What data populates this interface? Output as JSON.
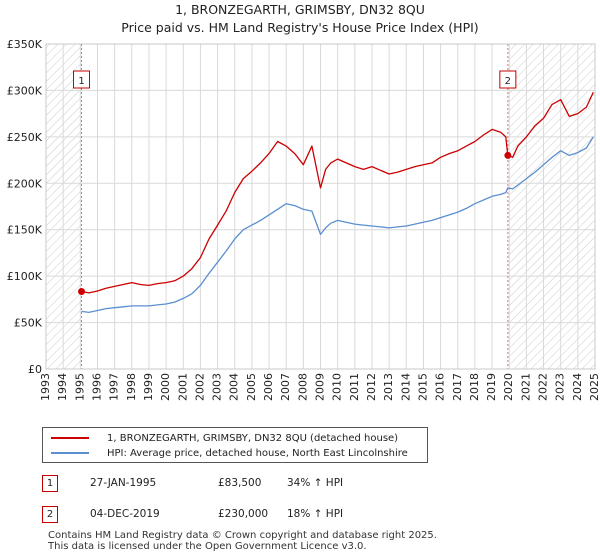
{
  "chart_data": {
    "type": "line",
    "title": "1, BRONZEGARTH, GRIMSBY, DN32 8QU",
    "subtitle": "Price paid vs. HM Land Registry's House Price Index (HPI)",
    "xlabel": "",
    "ylabel": "",
    "xlim": [
      1993,
      2025
    ],
    "ylim": [
      0,
      350000
    ],
    "x_ticks": [
      "1993",
      "1994",
      "1995",
      "1996",
      "1997",
      "1998",
      "1999",
      "2000",
      "2001",
      "2002",
      "2003",
      "2004",
      "2005",
      "2006",
      "2007",
      "2008",
      "2009",
      "2010",
      "2011",
      "2012",
      "2013",
      "2014",
      "2015",
      "2016",
      "2017",
      "2018",
      "2019",
      "2020",
      "2021",
      "2022",
      "2023",
      "2024",
      "2025"
    ],
    "y_ticks": [
      {
        "value": 0,
        "label": "£0"
      },
      {
        "value": 50000,
        "label": "£50K"
      },
      {
        "value": 100000,
        "label": "£100K"
      },
      {
        "value": 150000,
        "label": "£150K"
      },
      {
        "value": 200000,
        "label": "£200K"
      },
      {
        "value": 250000,
        "label": "£250K"
      },
      {
        "value": 300000,
        "label": "£300K"
      },
      {
        "value": 350000,
        "label": "£350K"
      }
    ],
    "grid": true,
    "series": [
      {
        "name": "1, BRONZEGARTH, GRIMSBY, DN32 8QU (detached house)",
        "color": "#cc0000",
        "x": [
          1995.07,
          1995.5,
          1996,
          1996.5,
          1997,
          1997.5,
          1998,
          1998.5,
          1999,
          1999.5,
          2000,
          2000.5,
          2001,
          2001.5,
          2002,
          2002.5,
          2003,
          2003.5,
          2004,
          2004.5,
          2005,
          2005.5,
          2006,
          2006.5,
          2007,
          2007.5,
          2008,
          2008.5,
          2009,
          2009.3,
          2009.6,
          2010,
          2010.5,
          2011,
          2011.5,
          2012,
          2012.5,
          2013,
          2013.5,
          2014,
          2014.5,
          2015,
          2015.5,
          2016,
          2016.5,
          2017,
          2017.5,
          2018,
          2018.5,
          2019,
          2019.5,
          2019.8,
          2019.92,
          2020.2,
          2020.5,
          2021,
          2021.5,
          2022,
          2022.5,
          2023,
          2023.5,
          2024,
          2024.5,
          2024.9
        ],
        "y": [
          83500,
          82000,
          84000,
          87000,
          89000,
          91000,
          93000,
          91000,
          90000,
          92000,
          93000,
          95000,
          100000,
          108000,
          120000,
          140000,
          155000,
          170000,
          190000,
          205000,
          213000,
          222000,
          232000,
          245000,
          240000,
          232000,
          220000,
          240000,
          195000,
          215000,
          222000,
          226000,
          222000,
          218000,
          215000,
          218000,
          214000,
          210000,
          212000,
          215000,
          218000,
          220000,
          222000,
          228000,
          232000,
          235000,
          240000,
          245000,
          252000,
          258000,
          255000,
          250000,
          230000,
          228000,
          240000,
          250000,
          262000,
          270000,
          285000,
          290000,
          272000,
          275000,
          282000,
          298000
        ]
      },
      {
        "name": "HPI: Average price, detached house, North East Lincolnshire",
        "color": "#5b8fd0",
        "x": [
          1995.07,
          1995.5,
          1996,
          1996.5,
          1997,
          1997.5,
          1998,
          1998.5,
          1999,
          1999.5,
          2000,
          2000.5,
          2001,
          2001.5,
          2002,
          2002.5,
          2003,
          2003.5,
          2004,
          2004.5,
          2005,
          2005.5,
          2006,
          2006.5,
          2007,
          2007.5,
          2008,
          2008.5,
          2009,
          2009.3,
          2009.6,
          2010,
          2010.5,
          2011,
          2011.5,
          2012,
          2012.5,
          2013,
          2013.5,
          2014,
          2014.5,
          2015,
          2015.5,
          2016,
          2016.5,
          2017,
          2017.5,
          2018,
          2018.5,
          2019,
          2019.5,
          2019.8,
          2019.92,
          2020.2,
          2020.5,
          2021,
          2021.5,
          2022,
          2022.5,
          2023,
          2023.5,
          2024,
          2024.5,
          2024.9
        ],
        "y": [
          62000,
          61000,
          63000,
          65000,
          66000,
          67000,
          68000,
          68000,
          68000,
          69000,
          70000,
          72000,
          76000,
          81000,
          90000,
          103000,
          115000,
          127000,
          140000,
          150000,
          155000,
          160000,
          166000,
          172000,
          178000,
          176000,
          172000,
          170000,
          145000,
          152000,
          157000,
          160000,
          158000,
          156000,
          155000,
          154000,
          153000,
          152000,
          153000,
          154000,
          156000,
          158000,
          160000,
          163000,
          166000,
          169000,
          173000,
          178000,
          182000,
          186000,
          188000,
          190000,
          195000,
          194000,
          198000,
          205000,
          212000,
          220000,
          228000,
          235000,
          230000,
          233000,
          238000,
          250000
        ]
      }
    ],
    "annotations": [
      {
        "label": "1",
        "x": 1995.07
      },
      {
        "label": "2",
        "x": 2019.92
      }
    ],
    "sale_points": [
      {
        "label": "1",
        "x": 1995.07,
        "y": 83500
      },
      {
        "label": "2",
        "x": 2019.92,
        "y": 230000
      }
    ],
    "hatched_regions": [
      {
        "from": 1993,
        "to": 1995.07
      },
      {
        "from": 2019.92,
        "to": 2025
      }
    ]
  },
  "legend": {
    "entries": [
      {
        "label": "1, BRONZEGARTH, GRIMSBY, DN32 8QU (detached house)",
        "color": "#cc0000"
      },
      {
        "label": "HPI: Average price, detached house, North East Lincolnshire",
        "color": "#5b8fd0"
      }
    ]
  },
  "sales_table": [
    {
      "num": "1",
      "date": "27-JAN-1995",
      "price": "£83,500",
      "hpi": "34% ↑ HPI"
    },
    {
      "num": "2",
      "date": "04-DEC-2019",
      "price": "£230,000",
      "hpi": "18% ↑ HPI"
    }
  ],
  "footer": {
    "line1": "Contains HM Land Registry data © Crown copyright and database right 2025.",
    "line2": "This data is licensed under the Open Government Licence v3.0."
  }
}
